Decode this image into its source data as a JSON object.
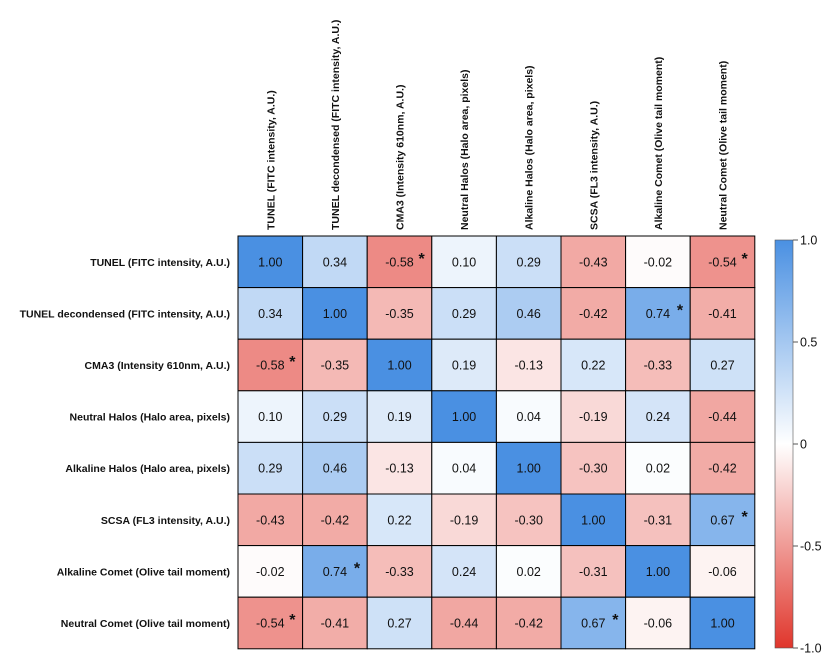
{
  "chart_data": {
    "type": "heatmap",
    "title": "",
    "row_labels": [
      "TUNEL (FITC intensity, A.U.)",
      "TUNEL decondensed (FITC intensity, A.U.)",
      "CMA3 (Intensity 610nm, A.U.)",
      "Neutral Halos (Halo area, pixels)",
      "Alkaline Halos (Halo area, pixels)",
      "SCSA (FL3 intensity, A.U.)",
      "Alkaline Comet (Olive tail moment)",
      "Neutral Comet (Olive tail moment)"
    ],
    "col_labels": [
      "TUNEL (FITC intensity, A.U.)",
      "TUNEL decondensed (FITC intensity, A.U.)",
      "CMA3 (Intensity 610nm, A.U.)",
      "Neutral Halos (Halo area, pixels)",
      "Alkaline Halos (Halo area, pixels)",
      "SCSA (FL3 intensity, A.U.)",
      "Alkaline Comet (Olive tail moment)",
      "Neutral Comet (Olive tail moment)"
    ],
    "cell_text": [
      [
        "1.00",
        "0.34",
        "-0.58",
        "0.10",
        "0.29",
        "-0.43",
        "-0.02",
        "-0.54"
      ],
      [
        "0.34",
        "1.00",
        "-0.35",
        "0.29",
        "0.46",
        "-0.42",
        "0.74",
        "-0.41"
      ],
      [
        "-0.58",
        "-0.35",
        "1.00",
        "0.19",
        "-0.13",
        "0.22",
        "-0.33",
        "0.27"
      ],
      [
        "0.10",
        "0.29",
        "0.19",
        "1.00",
        "0.04",
        "-0.19",
        "0.24",
        "-0.44"
      ],
      [
        "0.29",
        "0.46",
        "-0.13",
        "0.04",
        "1.00",
        "-0.30",
        "0.02",
        "-0.42"
      ],
      [
        "-0.43",
        "-0.42",
        "0.22",
        "-0.19",
        "-0.30",
        "1.00",
        "-0.31",
        "0.67"
      ],
      [
        "-0.02",
        "0.74",
        "-0.33",
        "0.24",
        "0.02",
        "-0.31",
        "1.00",
        "-0.06"
      ],
      [
        "-0.54",
        "-0.41",
        "0.27",
        "-0.44",
        "-0.42",
        "0.67",
        "-0.06",
        "1.00"
      ]
    ],
    "significant": [
      [
        0,
        2
      ],
      [
        0,
        7
      ],
      [
        1,
        6
      ],
      [
        2,
        0
      ],
      [
        5,
        7
      ],
      [
        6,
        1
      ],
      [
        7,
        0
      ],
      [
        7,
        5
      ]
    ],
    "significance_marker": "*",
    "colorbar": {
      "range": [
        -1.0,
        1.0
      ],
      "ticks": [
        1.0,
        0.5,
        0,
        -0.5,
        -1.0
      ],
      "tick_labels": [
        "1.0",
        "0.5",
        "0",
        "-0.5",
        "-1.0"
      ],
      "colors": {
        "positive": "#4a90e2",
        "zero": "#ffffff",
        "negative": "#e0362c"
      }
    }
  }
}
